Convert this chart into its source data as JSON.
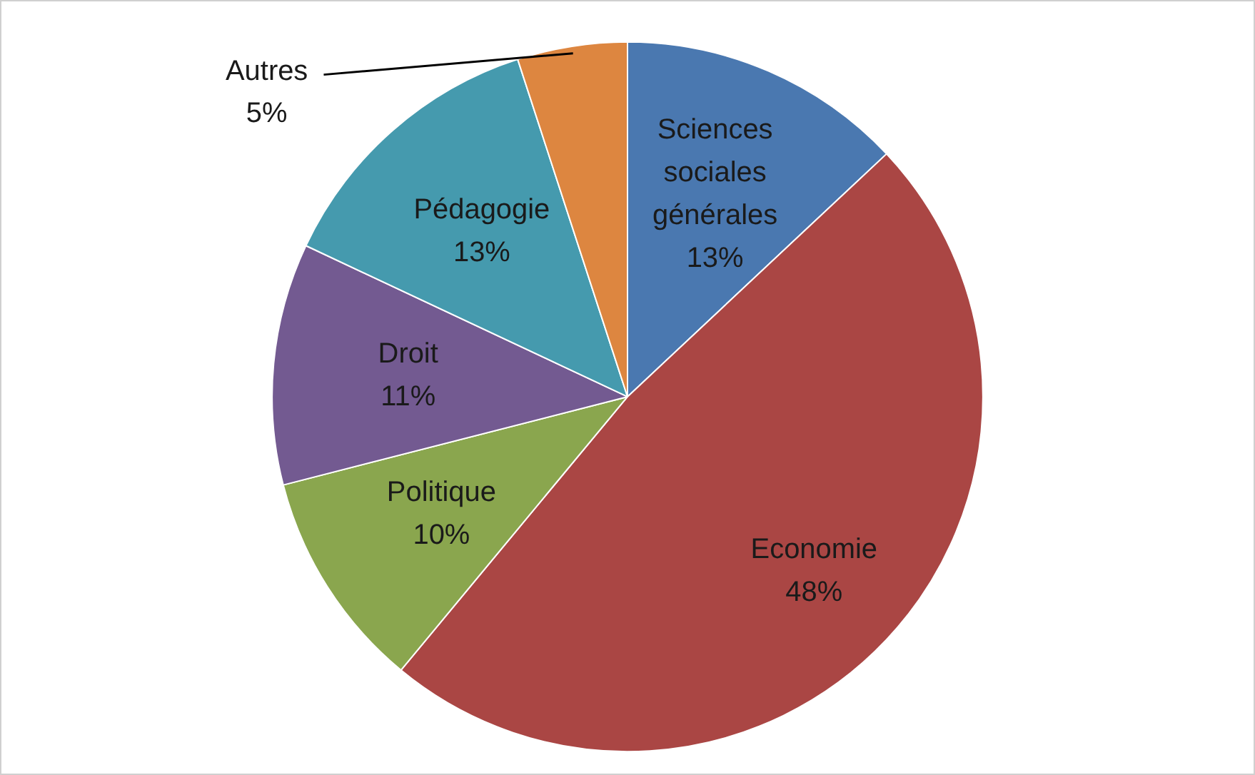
{
  "chart_data": {
    "type": "pie",
    "categories": [
      "Sciences sociales générales",
      "Economie",
      "Politique",
      "Droit",
      "Pédagogie",
      "Autres"
    ],
    "values": [
      13,
      48,
      10,
      11,
      13,
      5
    ],
    "value_labels": [
      "13%",
      "48%",
      "10%",
      "11%",
      "13%",
      "5%"
    ],
    "colors": [
      "#4a78b0",
      "#aa4644",
      "#8aa64e",
      "#735a91",
      "#459aae",
      "#dd8640"
    ],
    "legend": false
  }
}
